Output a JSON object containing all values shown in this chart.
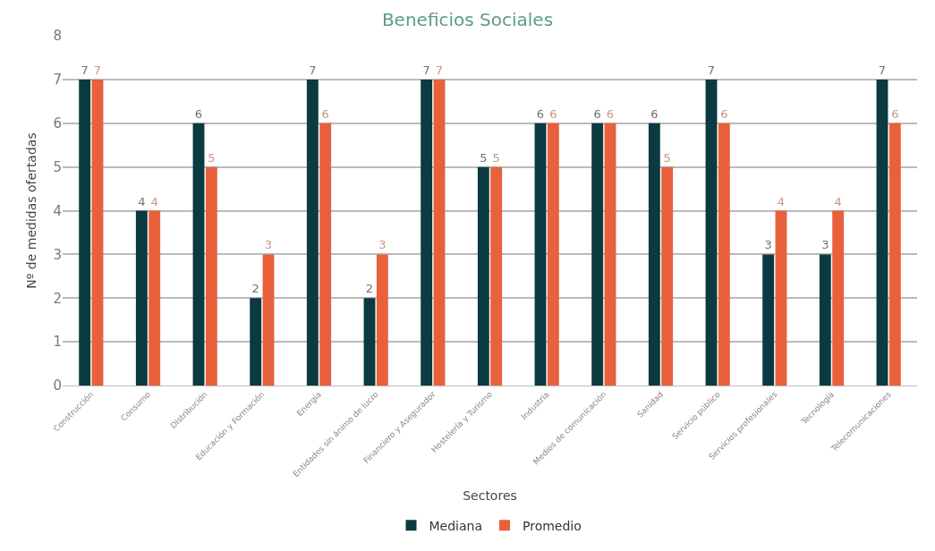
{
  "chart_data": {
    "type": "bar",
    "title": "Beneficios Sociales",
    "xlabel": "Sectores",
    "ylabel": "Nº de medidas ofertadas",
    "categories": [
      "Construcción",
      "Consumo",
      "Distribución",
      "Educación y Formación",
      "Energía",
      "Entidades sin ánimo de lucro",
      "Financiero y Asegurador",
      "Hostelería y Turismo",
      "Industria",
      "Medios de comunicación",
      "Sanidad",
      "Servicio público",
      "Servicios profesionales",
      "Tecnología",
      "Telecomunicaciones"
    ],
    "series": [
      {
        "name": "Mediana",
        "color": "#0b3a40",
        "values": [
          7,
          4,
          6,
          2,
          7,
          2,
          7,
          5,
          6,
          6,
          6,
          7,
          3,
          3,
          7
        ]
      },
      {
        "name": "Promedio",
        "color": "#e8603c",
        "values": [
          7,
          4,
          5,
          3,
          6,
          3,
          7,
          5,
          6,
          6,
          5,
          6,
          4,
          4,
          6
        ]
      }
    ],
    "ylim": [
      0,
      8
    ],
    "yticks": [
      0,
      1,
      2,
      3,
      4,
      5,
      6,
      7,
      8
    ],
    "grid": "y",
    "legend": "bottom",
    "data_labels": true
  }
}
